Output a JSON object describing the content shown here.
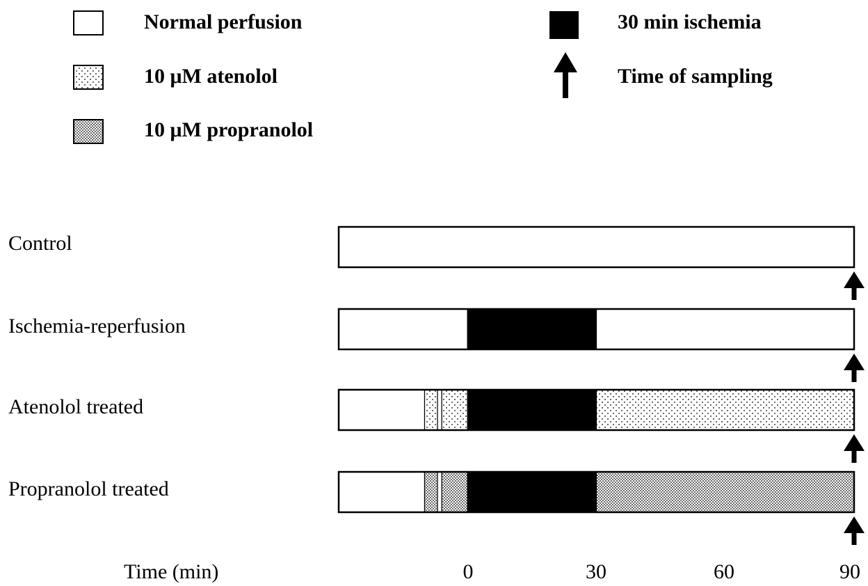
{
  "legend": {
    "items": [
      {
        "label": "Normal perfusion",
        "pattern": "white"
      },
      {
        "label": "10 μM atenolol",
        "pattern": "sparse-dots"
      },
      {
        "label": "10 μM propranolol",
        "pattern": "dense-dots"
      },
      {
        "label": "30 min ischemia",
        "pattern": "black"
      },
      {
        "label": "Time of sampling",
        "icon": "up-arrow-icon"
      }
    ]
  },
  "protocols": [
    {
      "label": "Control",
      "segments": [
        {
          "start": -30,
          "end": 90,
          "pattern": "white"
        }
      ],
      "sampling_time": 90
    },
    {
      "label": "Ischemia-reperfusion",
      "segments": [
        {
          "start": -30,
          "end": 0,
          "pattern": "white"
        },
        {
          "start": 0,
          "end": 30,
          "pattern": "black"
        },
        {
          "start": 30,
          "end": 90,
          "pattern": "white"
        }
      ],
      "sampling_time": 90
    },
    {
      "label": "Atenolol treated",
      "segments": [
        {
          "start": -30,
          "end": -10,
          "pattern": "white"
        },
        {
          "start": -10,
          "end": -7,
          "pattern": "sparse-dots"
        },
        {
          "start": -7,
          "end": -6,
          "pattern": "white"
        },
        {
          "start": -6,
          "end": 0,
          "pattern": "sparse-dots"
        },
        {
          "start": 0,
          "end": 30,
          "pattern": "black"
        },
        {
          "start": 30,
          "end": 90,
          "pattern": "sparse-dots"
        }
      ],
      "sampling_time": 90
    },
    {
      "label": "Propranolol treated",
      "segments": [
        {
          "start": -30,
          "end": -10,
          "pattern": "white"
        },
        {
          "start": -10,
          "end": -7,
          "pattern": "dense-dots"
        },
        {
          "start": -7,
          "end": -6,
          "pattern": "white"
        },
        {
          "start": -6,
          "end": 0,
          "pattern": "dense-dots"
        },
        {
          "start": 0,
          "end": 30,
          "pattern": "black"
        },
        {
          "start": 30,
          "end": 90,
          "pattern": "dense-dots"
        }
      ],
      "sampling_time": 90
    }
  ],
  "axis": {
    "title": "Time (min)",
    "ticks": [
      {
        "value": 0,
        "label": "0"
      },
      {
        "value": 30,
        "label": "30"
      },
      {
        "value": 60,
        "label": "60"
      },
      {
        "value": 90,
        "label": "90"
      }
    ],
    "range": [
      -30,
      90
    ]
  }
}
